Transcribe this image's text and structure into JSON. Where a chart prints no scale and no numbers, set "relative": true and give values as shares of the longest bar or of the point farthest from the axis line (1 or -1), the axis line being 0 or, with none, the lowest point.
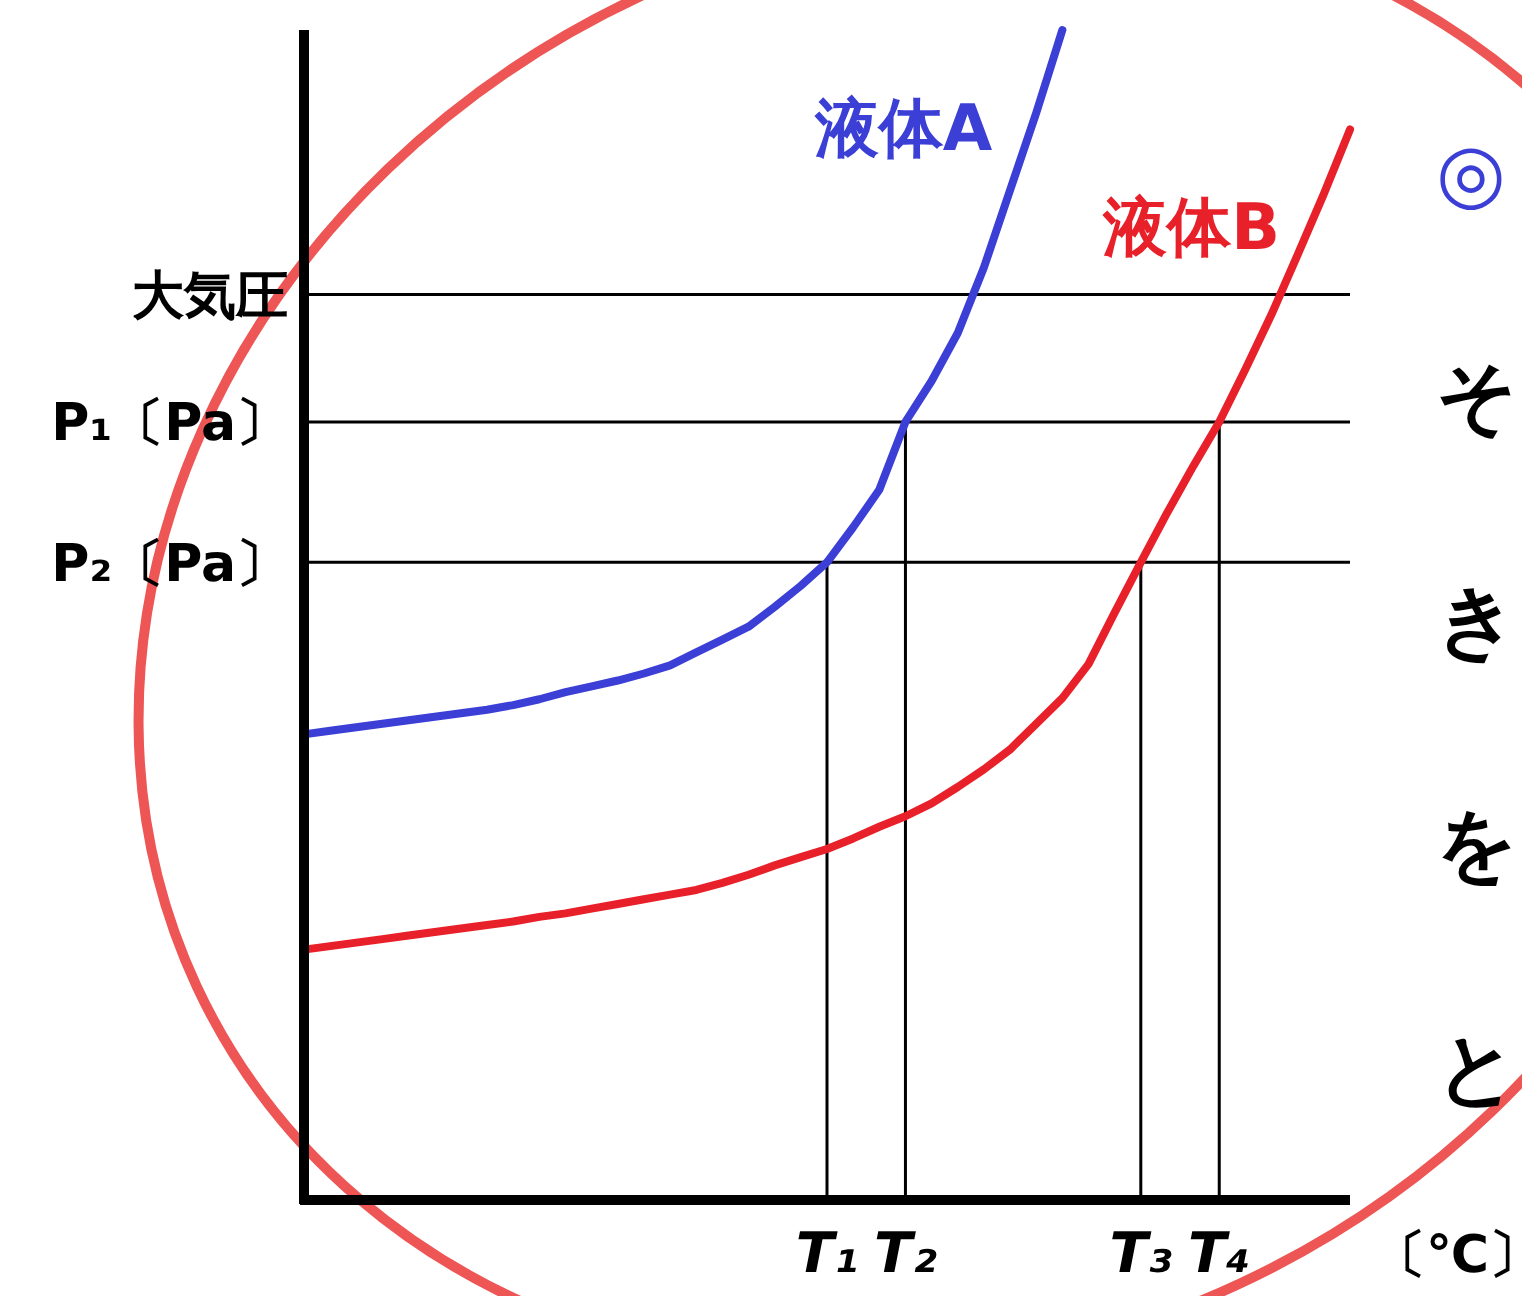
{
  "chart_data": {
    "type": "line",
    "relative": true,
    "xlabel": "〔℃〕",
    "categories": [
      null,
      null,
      null,
      null,
      null,
      null,
      null,
      null,
      null,
      null,
      null,
      null,
      null,
      null,
      null,
      null,
      null,
      null,
      null,
      null,
      "T₁",
      null,
      null,
      "T₂",
      null,
      null,
      null,
      null,
      null,
      null,
      null,
      null,
      "T₃",
      null,
      null,
      "T₄",
      null,
      null,
      null,
      null,
      null
    ],
    "ref_lines": [
      {
        "axis": "x",
        "value": "T₁"
      },
      {
        "axis": "x",
        "value": "T₂"
      },
      {
        "axis": "x",
        "value": "T₃"
      },
      {
        "axis": "x",
        "value": "T₄"
      },
      {
        "axis": "y",
        "value": 0.545,
        "label": "P₂〔Pa〕"
      },
      {
        "axis": "y",
        "value": 0.665,
        "label": "P₁〔Pa〕"
      },
      {
        "axis": "y",
        "value": 0.774,
        "label": "大気圧"
      }
    ],
    "series": [
      {
        "name": "液体A",
        "color": "#3b3fd6",
        "values": [
          0.398,
          0.401,
          0.404,
          0.407,
          0.41,
          0.413,
          0.416,
          0.419,
          0.423,
          0.428,
          0.434,
          0.439,
          0.444,
          0.45,
          0.457,
          0.468,
          0.479,
          0.49,
          0.507,
          0.525,
          0.545,
          0.575,
          0.607,
          0.665,
          0.7,
          0.741,
          0.797,
          0.863,
          0.929,
          1,
          null,
          null,
          null,
          null,
          null,
          null,
          null,
          null,
          null,
          null,
          null
        ]
      },
      {
        "name": "液体B",
        "color": "#e8202a",
        "values": [
          0.214,
          0.217,
          0.22,
          0.223,
          0.226,
          0.229,
          0.232,
          0.235,
          0.238,
          0.242,
          0.245,
          0.249,
          0.253,
          0.257,
          0.261,
          0.265,
          0.271,
          0.278,
          0.286,
          0.293,
          0.3,
          0.309,
          0.319,
          0.328,
          0.339,
          0.353,
          0.368,
          0.385,
          0.407,
          0.429,
          0.458,
          0.502,
          0.545,
          0.587,
          0.627,
          0.665,
          0.71,
          0.757,
          0.808,
          0.86,
          0.915
        ]
      }
    ],
    "annotations": [
      "◎",
      "そ",
      "き",
      "を",
      "と"
    ]
  }
}
